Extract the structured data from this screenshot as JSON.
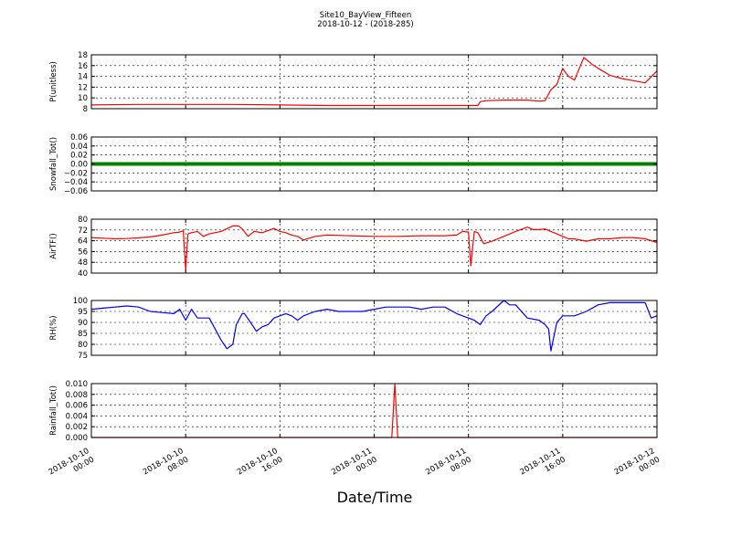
{
  "figure": {
    "title": "Site10_BayView_Fifteen",
    "subtitle": "2018-10-12 - (2018-285)",
    "xlabel": "Date/Time",
    "x_ticks": [
      {
        "t": 0,
        "label": [
          "2018-10-10",
          "00:00"
        ]
      },
      {
        "t": 8,
        "label": [
          "2018-10-10",
          "08:00"
        ]
      },
      {
        "t": 16,
        "label": [
          "2018-10-10",
          "16:00"
        ]
      },
      {
        "t": 24,
        "label": [
          "2018-10-11",
          "00:00"
        ]
      },
      {
        "t": 32,
        "label": [
          "2018-10-11",
          "08:00"
        ]
      },
      {
        "t": 40,
        "label": [
          "2018-10-11",
          "16:00"
        ]
      },
      {
        "t": 48,
        "label": [
          "2018-10-12",
          "00:00"
        ]
      }
    ]
  },
  "chart_data": [
    {
      "type": "line",
      "ylabel": "P(unitless)",
      "xlim": [
        "2018-10-10 00:00",
        "2018-10-12 00:00"
      ],
      "ylim": [
        8,
        18
      ],
      "yticks": [
        "8",
        "10",
        "12",
        "14",
        "16",
        "18"
      ],
      "grid": true,
      "color": "#ff0000",
      "x_unit": "hours since 2018-10-10 00:00",
      "x": [
        0,
        4,
        8,
        12,
        16,
        20,
        24,
        28,
        32,
        32.8,
        33,
        33.5,
        35,
        37,
        38,
        38.5,
        39,
        39.5,
        40,
        40.2,
        40.5,
        40.8,
        41,
        41.5,
        41.8,
        42.5,
        43,
        44,
        45,
        46,
        47,
        48
      ],
      "y": [
        8.7,
        8.8,
        8.8,
        8.8,
        8.7,
        8.6,
        8.6,
        8.6,
        8.6,
        8.6,
        9.3,
        9.5,
        9.6,
        9.6,
        9.4,
        9.5,
        11.5,
        12.5,
        15.5,
        14.8,
        14,
        13.6,
        13.3,
        16,
        17.5,
        16.2,
        15.5,
        14.2,
        13.6,
        13.2,
        12.8,
        15
      ]
    },
    {
      "type": "line",
      "ylabel": "Snowfall_Tot()",
      "xlim": [
        "2018-10-10 00:00",
        "2018-10-12 00:00"
      ],
      "ylim": [
        -0.06,
        0.06
      ],
      "yticks": [
        "−0.06",
        "−0.04",
        "−0.02",
        "0.00",
        "0.02",
        "0.04",
        "0.06"
      ],
      "grid": true,
      "color": "#008000",
      "x_unit": "hours since 2018-10-10 00:00",
      "x": [
        0,
        48
      ],
      "y": [
        0,
        0
      ]
    },
    {
      "type": "line",
      "ylabel": "AirTF()",
      "xlim": [
        "2018-10-10 00:00",
        "2018-10-12 00:00"
      ],
      "ylim": [
        40,
        84
      ],
      "yticks": [
        "40",
        "48",
        "56",
        "64",
        "72",
        "80"
      ],
      "grid": true,
      "color": "#ff0000",
      "x_unit": "hours since 2018-10-10 00:00",
      "x": [
        0,
        1,
        2,
        3,
        4,
        5,
        6,
        7,
        7.5,
        7.8,
        8.0,
        8.2,
        8.5,
        9,
        9.5,
        10,
        11,
        12,
        12.5,
        12.8,
        13.3,
        13.8,
        14.5,
        15.5,
        16,
        16.5,
        17,
        17.5,
        18,
        19,
        20,
        22,
        24,
        26,
        28,
        30,
        31,
        31.5,
        32,
        32.2,
        32.5,
        32.8,
        33.3,
        34,
        35,
        36,
        37,
        37.5,
        38,
        38.5,
        39,
        39.5,
        40,
        40.5,
        41,
        42,
        43,
        44,
        45,
        46,
        47,
        48
      ],
      "y": [
        69,
        68.5,
        68,
        68.2,
        68.8,
        69.5,
        71,
        73,
        73.5,
        74.5,
        42,
        72,
        73,
        74,
        70,
        72,
        74,
        78.5,
        78.5,
        76,
        70,
        74,
        73,
        76.5,
        74,
        73,
        71,
        70,
        67,
        70,
        71,
        70.5,
        70,
        70,
        70.5,
        70.5,
        71,
        74,
        73.5,
        46,
        74,
        73,
        64,
        66,
        70,
        74,
        77.5,
        75.5,
        75.5,
        76,
        74,
        72,
        70,
        68,
        68,
        66,
        68,
        68,
        69,
        69,
        68,
        65
      ]
    },
    {
      "type": "line",
      "ylabel": "RH(%)",
      "xlim": [
        "2018-10-10 00:00",
        "2018-10-12 00:00"
      ],
      "ylim": [
        75,
        100
      ],
      "yticks": [
        "75",
        "80",
        "85",
        "90",
        "95",
        "100"
      ],
      "grid": true,
      "color": "#0000ff",
      "x_unit": "hours since 2018-10-10 00:00",
      "x": [
        0,
        1,
        2,
        3,
        4,
        5,
        6,
        7,
        7.5,
        8,
        8.5,
        9,
        10,
        11,
        11.5,
        12,
        12.3,
        12.8,
        13,
        13.5,
        14,
        14.5,
        15,
        15.5,
        16,
        16.5,
        17,
        17.5,
        18,
        19,
        20,
        21,
        22,
        23,
        24,
        25,
        26,
        27,
        28,
        29,
        30,
        31,
        31.5,
        32,
        32.5,
        33,
        33.5,
        34,
        35,
        35.5,
        36,
        37,
        38,
        38.5,
        38.8,
        39,
        39.5,
        40,
        41,
        42,
        43,
        44,
        45,
        46,
        47,
        47.5,
        48
      ],
      "y": [
        96,
        96.5,
        97,
        97.5,
        97,
        95,
        94.5,
        94,
        96,
        91,
        96,
        92,
        92,
        82,
        78,
        80,
        89,
        94,
        94,
        90,
        86,
        88,
        89,
        92,
        93,
        94,
        93,
        91,
        93,
        95,
        96,
        95,
        95,
        95,
        96,
        97,
        97,
        97,
        96,
        97,
        97,
        94,
        93,
        92,
        91,
        89,
        93,
        95,
        100,
        98,
        98,
        92,
        91,
        89,
        87,
        77,
        90,
        93,
        93,
        95,
        98,
        99,
        99,
        99,
        99,
        92,
        93
      ]
    },
    {
      "type": "line",
      "ylabel": "Rainfall_Tot()",
      "xlim": [
        "2018-10-10 00:00",
        "2018-10-12 00:00"
      ],
      "ylim": [
        0,
        0.01
      ],
      "yticks": [
        "0.000",
        "0.002",
        "0.004",
        "0.006",
        "0.008",
        "0.010"
      ],
      "grid": true,
      "color": "#ff0000",
      "x_unit": "hours since 2018-10-10 00:00",
      "x": [
        0,
        25.5,
        25.75,
        26.0,
        48
      ],
      "y": [
        0,
        0,
        0.01,
        0,
        0
      ]
    }
  ]
}
